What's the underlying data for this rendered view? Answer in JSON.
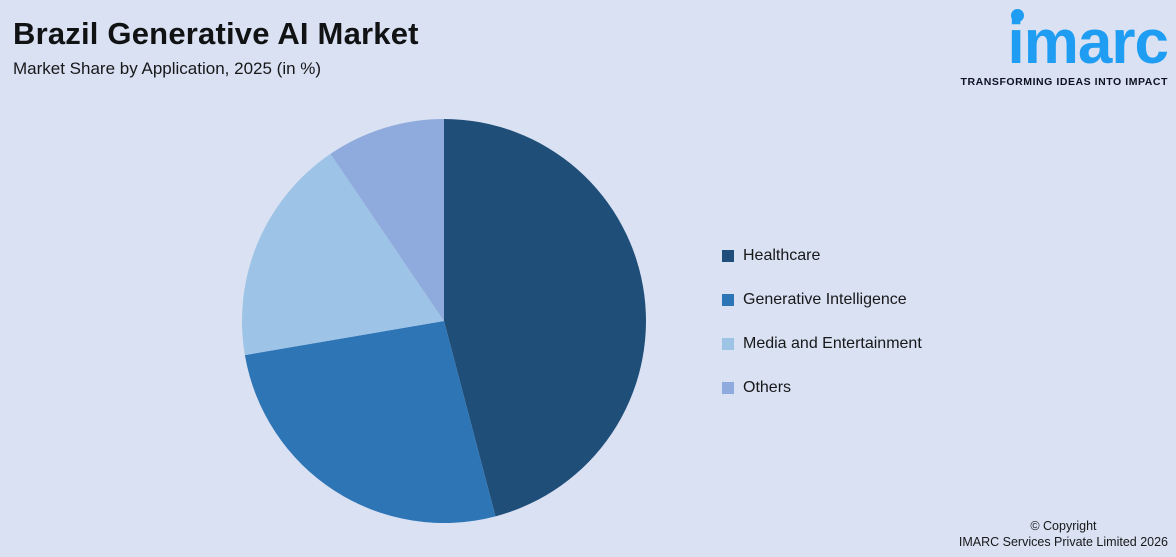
{
  "theme": {
    "background": "#d9e1f2",
    "logo_blue": "#1e9df2",
    "text_dark": "#17181a"
  },
  "header": {
    "title": "Brazil Generative AI Market",
    "subtitle": "Market Share by Application, 2025 (in %)"
  },
  "logo": {
    "wordmark": "imarc",
    "tagline": "TRANSFORMING IDEAS INTO IMPACT"
  },
  "chart_data": {
    "type": "pie",
    "title": "Brazil Generative AI Market",
    "subtitle": "Market Share by Application, 2025 (in %)",
    "unit": "%",
    "categories": [
      "Healthcare",
      "Generative Intelligence",
      "Media and Entertainment",
      "Others"
    ],
    "values": [
      45.9,
      26.4,
      18.2,
      9.5
    ],
    "colors": [
      "#1f4e79",
      "#2e75b6",
      "#9dc3e6",
      "#8faadc"
    ],
    "start_angle_deg": 0,
    "direction": "clockwise",
    "legend_position": "right",
    "data_labels": false
  },
  "legend": {
    "items": [
      {
        "label": "Healthcare",
        "color": "#1f4e79"
      },
      {
        "label": "Generative Intelligence",
        "color": "#2e75b6"
      },
      {
        "label": "Media and Entertainment",
        "color": "#9dc3e6"
      },
      {
        "label": "Others",
        "color": "#8faadc"
      }
    ]
  },
  "footer": {
    "line1": "© Copyright",
    "line2": "IMARC Services Private Limited 2026"
  }
}
